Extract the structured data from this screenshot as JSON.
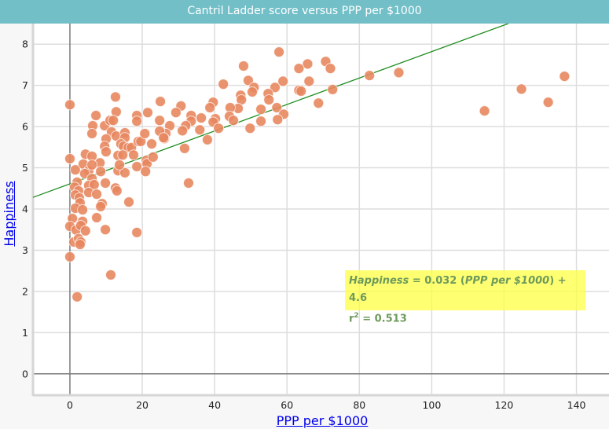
{
  "title": "Cantril Ladder score versus PPP per $1000",
  "equation": {
    "y_name": "Happiness",
    "eq_mid": " = 0.032 (",
    "x_name": "PPP per $1000",
    "eq_end": ") + 4.6",
    "r2_prefix": "r",
    "r2_sup": "2",
    "r2_value": " = 0.513"
  },
  "chart_data": {
    "type": "scatter",
    "xlabel": "PPP per $1000",
    "ylabel": "Happiness",
    "xlim": [
      -10.2,
      149
    ],
    "ylim": [
      -0.5,
      8.5
    ],
    "x_ticks": [
      0,
      20,
      40,
      60,
      80,
      100,
      120,
      140
    ],
    "y_ticks": [
      0,
      1,
      2,
      3,
      4,
      5,
      6,
      7,
      8
    ],
    "grid": true,
    "point_color": "#e8875f",
    "line_color": "#1c8c1c",
    "regression": {
      "slope": 0.0321,
      "intercept": 4.61,
      "r2": 0.513
    },
    "points": [
      [
        70.7,
        7.58
      ],
      [
        72.0,
        7.41
      ],
      [
        72.6,
        6.9
      ],
      [
        68.7,
        6.57
      ],
      [
        82.8,
        7.24
      ],
      [
        90.9,
        7.31
      ],
      [
        114.6,
        6.38
      ],
      [
        124.8,
        6.91
      ],
      [
        132.2,
        6.59
      ],
      [
        136.7,
        7.22
      ],
      [
        57.8,
        7.81
      ],
      [
        48.0,
        7.47
      ],
      [
        65.7,
        7.52
      ],
      [
        63.3,
        7.41
      ],
      [
        42.4,
        7.03
      ],
      [
        49.3,
        7.12
      ],
      [
        50.9,
        6.95
      ],
      [
        50.4,
        6.84
      ],
      [
        56.7,
        6.95
      ],
      [
        58.9,
        7.1
      ],
      [
        66.1,
        7.1
      ],
      [
        63.3,
        6.88
      ],
      [
        63.9,
        6.86
      ],
      [
        47.2,
        6.76
      ],
      [
        47.4,
        6.65
      ],
      [
        54.8,
        6.8
      ],
      [
        55.0,
        6.65
      ],
      [
        57.2,
        6.46
      ],
      [
        59.1,
        6.3
      ],
      [
        57.4,
        6.17
      ],
      [
        52.8,
        6.42
      ],
      [
        52.8,
        6.13
      ],
      [
        49.8,
        5.96
      ],
      [
        46.5,
        6.44
      ],
      [
        44.3,
        6.46
      ],
      [
        44.1,
        6.25
      ],
      [
        45.2,
        6.15
      ],
      [
        39.6,
        6.59
      ],
      [
        38.7,
        6.46
      ],
      [
        40.2,
        6.19
      ],
      [
        39.6,
        6.11
      ],
      [
        41.1,
        5.96
      ],
      [
        36.3,
        6.21
      ],
      [
        35.9,
        5.92
      ],
      [
        38.0,
        5.68
      ],
      [
        33.5,
        6.27
      ],
      [
        33.5,
        6.13
      ],
      [
        32.0,
        6.02
      ],
      [
        31.1,
        5.9
      ],
      [
        30.7,
        6.5
      ],
      [
        29.3,
        6.34
      ],
      [
        27.6,
        6.02
      ],
      [
        26.5,
        5.83
      ],
      [
        26.1,
        5.71
      ],
      [
        24.8,
        5.89
      ],
      [
        24.8,
        6.15
      ],
      [
        25.0,
        6.61
      ],
      [
        31.7,
        5.47
      ],
      [
        32.8,
        4.63
      ],
      [
        0,
        6.53
      ],
      [
        12.6,
        6.72
      ],
      [
        12.8,
        6.36
      ],
      [
        7.2,
        6.27
      ],
      [
        6.3,
        6.02
      ],
      [
        6.1,
        5.83
      ],
      [
        9.6,
        6.02
      ],
      [
        11.1,
        6.15
      ],
      [
        12.0,
        6.15
      ],
      [
        18.5,
        6.27
      ],
      [
        18.5,
        6.13
      ],
      [
        21.5,
        6.34
      ],
      [
        11.5,
        5.87
      ],
      [
        12.8,
        5.77
      ],
      [
        15.2,
        5.85
      ],
      [
        15.2,
        5.73
      ],
      [
        10.0,
        5.7
      ],
      [
        9.6,
        5.52
      ],
      [
        14.1,
        5.58
      ],
      [
        14.8,
        5.52
      ],
      [
        16.1,
        5.49
      ],
      [
        17.0,
        5.49
      ],
      [
        18.9,
        5.64
      ],
      [
        19.6,
        5.64
      ],
      [
        20.7,
        5.83
      ],
      [
        22.6,
        5.58
      ],
      [
        25.9,
        5.73
      ],
      [
        4.3,
        5.33
      ],
      [
        6.1,
        5.28
      ],
      [
        8.3,
        5.12
      ],
      [
        10.0,
        5.39
      ],
      [
        13.3,
        5.3
      ],
      [
        14.6,
        5.31
      ],
      [
        17.6,
        5.31
      ],
      [
        18.5,
        5.03
      ],
      [
        21.1,
        5.18
      ],
      [
        21.3,
        5.1
      ],
      [
        23.0,
        5.26
      ],
      [
        20.9,
        4.91
      ],
      [
        0,
        5.22
      ],
      [
        1.5,
        4.95
      ],
      [
        3.7,
        5.09
      ],
      [
        5.2,
        4.93
      ],
      [
        6.1,
        5.07
      ],
      [
        4.1,
        4.86
      ],
      [
        8.5,
        4.91
      ],
      [
        13.3,
        4.93
      ],
      [
        15.2,
        4.88
      ],
      [
        13.7,
        5.07
      ],
      [
        9.8,
        4.63
      ],
      [
        12.6,
        4.51
      ],
      [
        13.0,
        4.44
      ],
      [
        6.1,
        4.74
      ],
      [
        5.2,
        4.57
      ],
      [
        6.7,
        4.59
      ],
      [
        2.0,
        4.65
      ],
      [
        1.3,
        4.53
      ],
      [
        2.4,
        4.44
      ],
      [
        5.2,
        4.4
      ],
      [
        7.4,
        4.36
      ],
      [
        1.5,
        4.34
      ],
      [
        2.6,
        4.27
      ],
      [
        2.8,
        4.15
      ],
      [
        1.5,
        4.02
      ],
      [
        3.5,
        3.98
      ],
      [
        0.7,
        3.77
      ],
      [
        3.5,
        3.7
      ],
      [
        0,
        3.58
      ],
      [
        1.7,
        3.49
      ],
      [
        3.0,
        3.6
      ],
      [
        4.3,
        3.47
      ],
      [
        7.4,
        3.79
      ],
      [
        8.9,
        4.13
      ],
      [
        8.5,
        4.06
      ],
      [
        9.8,
        3.5
      ],
      [
        18.5,
        3.43
      ],
      [
        16.3,
        4.17
      ],
      [
        1.1,
        3.2
      ],
      [
        2.4,
        3.28
      ],
      [
        3.0,
        3.2
      ],
      [
        2.8,
        3.14
      ],
      [
        0,
        2.84
      ],
      [
        11.3,
        2.4
      ],
      [
        2.0,
        1.87
      ]
    ]
  }
}
